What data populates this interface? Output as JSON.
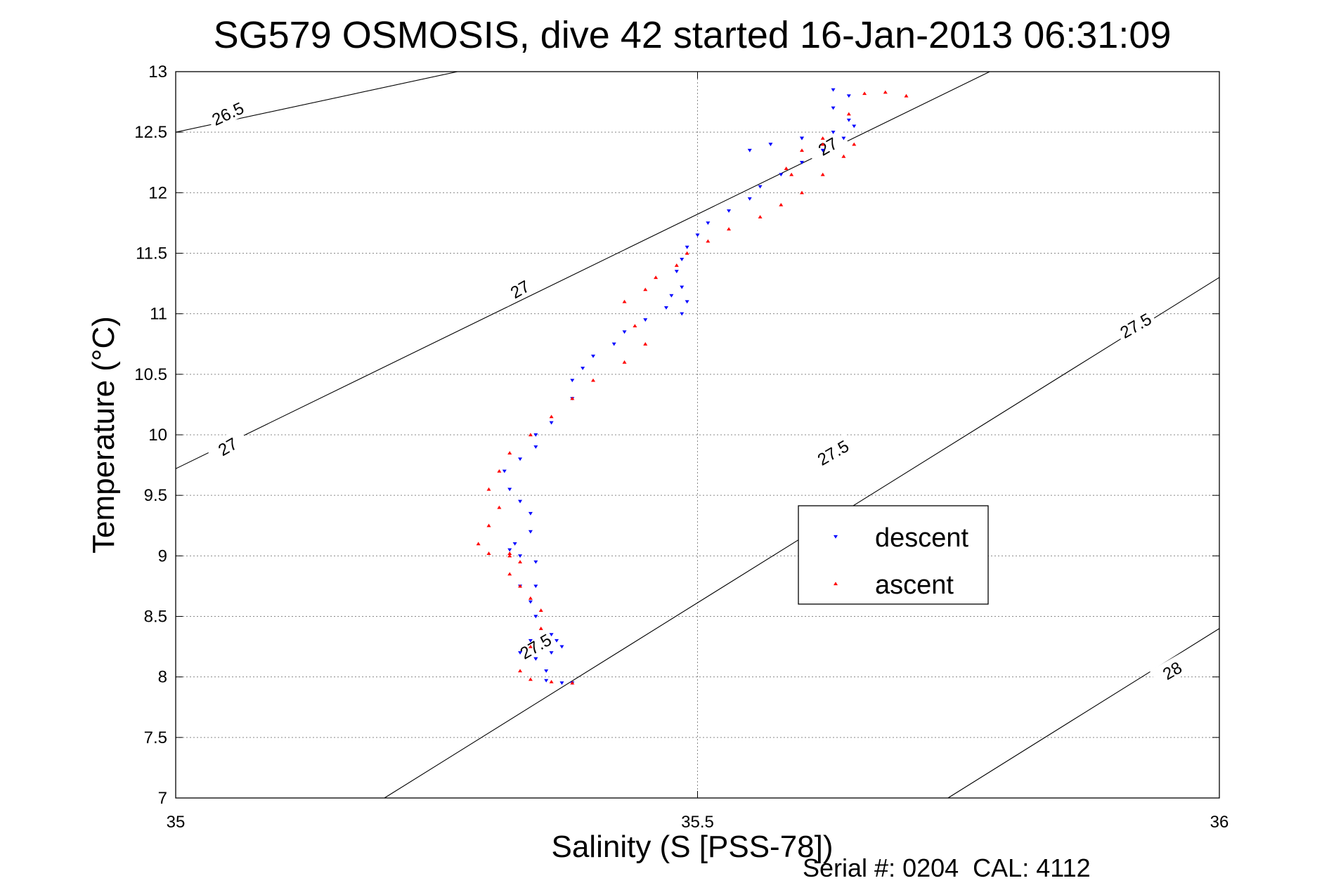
{
  "chart_data": {
    "type": "scatter",
    "title": "SG579 OSMOSIS, dive 42 started 16-Jan-2013 06:31:09",
    "xlabel": "Salinity (S [PSS-78])",
    "ylabel": "Temperature (°C)",
    "footer": "Serial #: 0204  CAL: 4112",
    "xlim": [
      35,
      36
    ],
    "ylim": [
      7,
      13
    ],
    "xticks": [
      35,
      35.5,
      36
    ],
    "xtick_labels": [
      "35",
      "35.5",
      "36"
    ],
    "yticks": [
      7,
      7.5,
      8,
      8.5,
      9,
      9.5,
      10,
      10.5,
      11,
      11.5,
      12,
      12.5,
      13
    ],
    "ytick_labels": [
      "7",
      "7.5",
      "8",
      "8.5",
      "9",
      "9.5",
      "10",
      "10.5",
      "11",
      "11.5",
      "12",
      "12.5",
      "13"
    ],
    "grid": true,
    "legend_position": "right-center",
    "series": [
      {
        "name": "descent",
        "color": "#0000ff",
        "marker": "triangle-down",
        "x": [
          35.38,
          35.37,
          35.355,
          35.355,
          35.345,
          35.33,
          35.34,
          35.36,
          35.365,
          35.37,
          35.36,
          35.345,
          35.345,
          35.34,
          35.345,
          35.33,
          35.345,
          35.33,
          35.32,
          35.325,
          35.34,
          35.34,
          35.33,
          35.32,
          35.315,
          35.33,
          35.345,
          35.345,
          35.36,
          35.38,
          35.38,
          35.39,
          35.4,
          35.42,
          35.43,
          35.45,
          35.47,
          35.475,
          35.485,
          35.49,
          35.485,
          35.48,
          35.485,
          35.49,
          35.5,
          35.51,
          35.53,
          35.55,
          35.56,
          35.58,
          35.6,
          35.62,
          35.64,
          35.65,
          35.645,
          35.63,
          35.6,
          35.57,
          35.55,
          35.6,
          35.63,
          35.645,
          35.63
        ],
        "y": [
          7.95,
          7.95,
          7.97,
          8.05,
          8.15,
          8.2,
          8.3,
          8.35,
          8.3,
          8.25,
          8.2,
          8.15,
          8.5,
          8.62,
          8.75,
          8.75,
          8.95,
          9.0,
          9.05,
          9.1,
          9.2,
          9.35,
          9.45,
          9.55,
          9.7,
          9.8,
          9.9,
          10.0,
          10.1,
          10.3,
          10.45,
          10.55,
          10.65,
          10.75,
          10.85,
          10.95,
          11.05,
          11.15,
          11.22,
          11.1,
          11.0,
          11.35,
          11.45,
          11.55,
          11.65,
          11.75,
          11.85,
          11.95,
          12.05,
          12.15,
          12.25,
          12.35,
          12.45,
          12.55,
          12.6,
          12.5,
          12.45,
          12.4,
          12.35,
          12.45,
          12.7,
          12.8,
          12.85
        ]
      },
      {
        "name": "ascent",
        "color": "#ff0000",
        "marker": "triangle-up",
        "x": [
          35.38,
          35.36,
          35.34,
          35.33,
          35.34,
          35.35,
          35.35,
          35.34,
          35.33,
          35.32,
          35.33,
          35.32,
          35.32,
          35.3,
          35.29,
          35.3,
          35.31,
          35.3,
          35.31,
          35.32,
          35.34,
          35.36,
          35.38,
          35.4,
          35.43,
          35.45,
          35.44,
          35.43,
          35.45,
          35.46,
          35.48,
          35.49,
          35.51,
          35.53,
          35.56,
          35.58,
          35.6,
          35.62,
          35.64,
          35.65,
          35.62,
          35.6,
          35.585,
          35.59,
          35.62,
          35.645,
          35.66,
          35.68,
          35.7
        ],
        "y": [
          7.95,
          7.96,
          7.98,
          8.05,
          8.25,
          8.4,
          8.55,
          8.65,
          8.75,
          8.85,
          8.95,
          9.0,
          9.02,
          9.02,
          9.1,
          9.25,
          9.4,
          9.55,
          9.7,
          9.85,
          10.0,
          10.15,
          10.3,
          10.45,
          10.6,
          10.75,
          10.9,
          11.1,
          11.2,
          11.3,
          11.4,
          11.5,
          11.6,
          11.7,
          11.8,
          11.9,
          12.0,
          12.15,
          12.3,
          12.4,
          12.45,
          12.35,
          12.2,
          12.15,
          12.4,
          12.65,
          12.82,
          12.83,
          12.8
        ]
      }
    ],
    "contours": [
      {
        "label": "26.5",
        "x": [
          35,
          35.27
        ],
        "y": [
          12.5,
          13.0
        ]
      },
      {
        "label": "27",
        "x": [
          35,
          35.78
        ],
        "y": [
          9.72,
          13.0
        ]
      },
      {
        "label": "27.5",
        "x": [
          35.2,
          36
        ],
        "y": [
          7.0,
          11.3
        ]
      },
      {
        "label": "28",
        "x": [
          35.74,
          36
        ],
        "y": [
          7.0,
          8.4
        ]
      }
    ],
    "contour_labels": [
      {
        "text": "26.5",
        "x": 35.05,
        "y": 12.65,
        "angle": -25
      },
      {
        "text": "27",
        "x": 35.05,
        "y": 9.9,
        "angle": -30
      },
      {
        "text": "27",
        "x": 35.33,
        "y": 11.2,
        "angle": -30
      },
      {
        "text": "27",
        "x": 35.625,
        "y": 12.38,
        "angle": -30
      },
      {
        "text": "27.5",
        "x": 35.345,
        "y": 8.25,
        "angle": -30
      },
      {
        "text": "27.5",
        "x": 35.63,
        "y": 9.85,
        "angle": -30
      },
      {
        "text": "27.5",
        "x": 35.92,
        "y": 10.9,
        "angle": -30
      },
      {
        "text": "28",
        "x": 35.955,
        "y": 8.05,
        "angle": -30
      }
    ]
  }
}
